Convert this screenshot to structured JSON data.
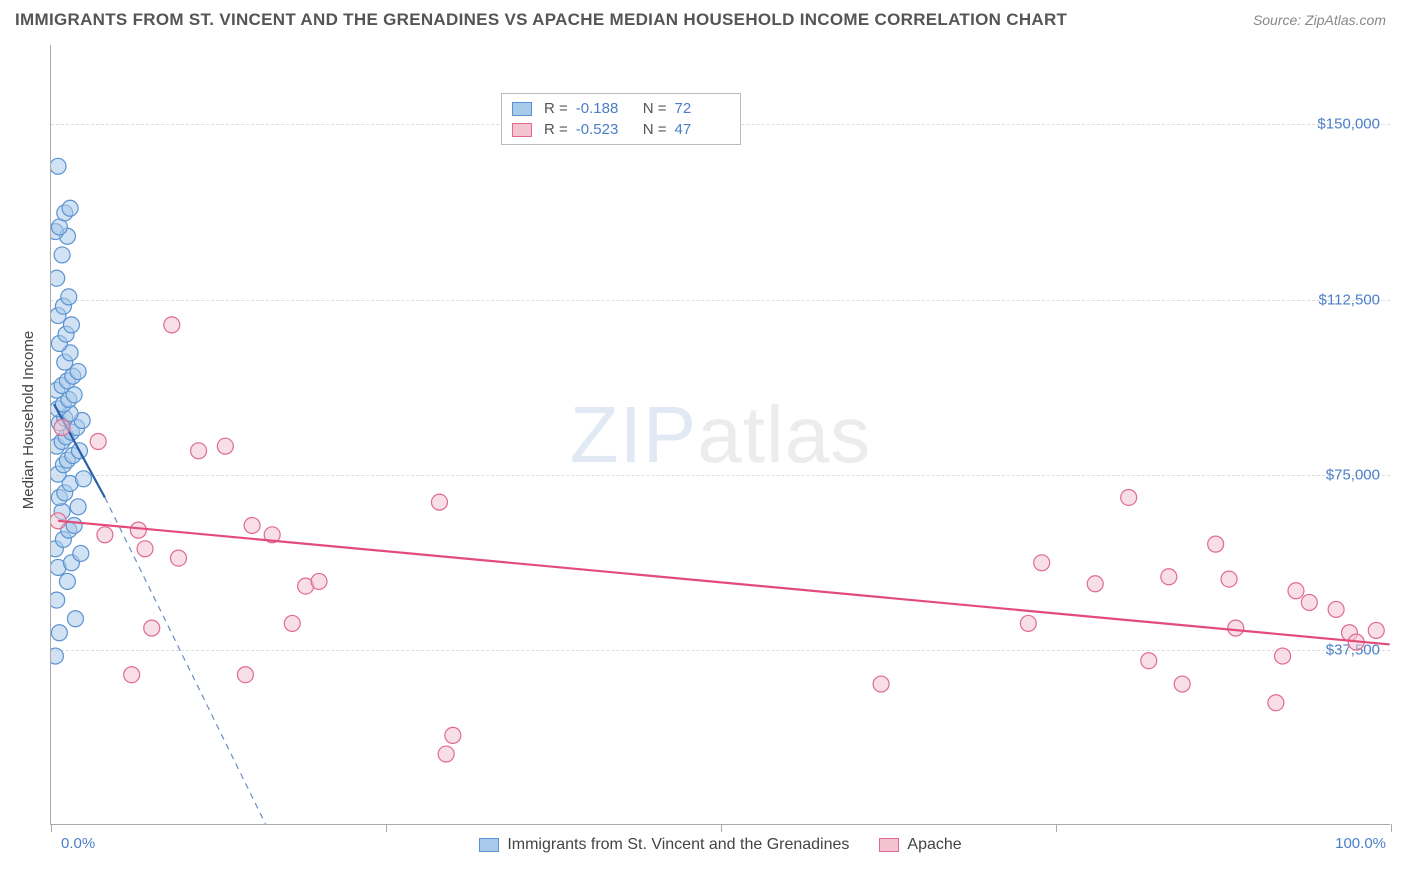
{
  "title": "IMMIGRANTS FROM ST. VINCENT AND THE GRENADINES VS APACHE MEDIAN HOUSEHOLD INCOME CORRELATION CHART",
  "source": "Source: ZipAtlas.com",
  "watermark_a": "ZIP",
  "watermark_b": "atlas",
  "ylabel": "Median Household Income",
  "chart": {
    "type": "scatter",
    "xlim": [
      0.0,
      100.0
    ],
    "ylim": [
      0,
      167000
    ],
    "ytick_values": [
      37500,
      75000,
      112500,
      150000
    ],
    "ytick_labels": [
      "$37,500",
      "$75,000",
      "$112,500",
      "$150,000"
    ],
    "xtick_values": [
      0,
      25,
      50,
      75,
      100
    ],
    "xtick_label_left": "0.0%",
    "xtick_label_right": "100.0%",
    "grid_color": "#dddddd",
    "axis_color": "#aaaaaa",
    "marker_radius": 8,
    "marker_opacity": 0.55,
    "line_width": 2.2,
    "series": [
      {
        "name": "Immigrants from St. Vincent and the Grenadines",
        "fill": "#a9cbeb",
        "stroke": "#5b93d1",
        "line_color": "#2a5fa8",
        "r_value": "-0.188",
        "n_value": "72",
        "trend": {
          "x1": 0.2,
          "y1": 90000,
          "x2": 4.0,
          "y2": 70000,
          "dash_extend_x": 16,
          "dash_extend_y": 0
        },
        "points": [
          [
            0.3,
            36000
          ],
          [
            0.6,
            41000
          ],
          [
            1.8,
            44000
          ],
          [
            0.4,
            48000
          ],
          [
            1.2,
            52000
          ],
          [
            0.5,
            55000
          ],
          [
            1.5,
            56000
          ],
          [
            2.2,
            58000
          ],
          [
            0.3,
            59000
          ],
          [
            0.9,
            61000
          ],
          [
            1.3,
            63000
          ],
          [
            1.7,
            64000
          ],
          [
            0.8,
            67000
          ],
          [
            2.0,
            68000
          ],
          [
            0.6,
            70000
          ],
          [
            1.0,
            71000
          ],
          [
            1.4,
            73000
          ],
          [
            2.4,
            74000
          ],
          [
            0.5,
            75000
          ],
          [
            0.9,
            77000
          ],
          [
            1.2,
            78000
          ],
          [
            1.6,
            79000
          ],
          [
            2.1,
            80000
          ],
          [
            0.4,
            81000
          ],
          [
            0.8,
            82000
          ],
          [
            1.1,
            83000
          ],
          [
            1.5,
            84000
          ],
          [
            1.9,
            85000
          ],
          [
            0.6,
            86000
          ],
          [
            2.3,
            86500
          ],
          [
            1.0,
            87000
          ],
          [
            1.4,
            88000
          ],
          [
            0.5,
            89000
          ],
          [
            0.9,
            90000
          ],
          [
            1.3,
            91000
          ],
          [
            1.7,
            92000
          ],
          [
            0.4,
            93000
          ],
          [
            0.8,
            94000
          ],
          [
            1.2,
            95000
          ],
          [
            1.6,
            96000
          ],
          [
            2.0,
            97000
          ],
          [
            1.0,
            99000
          ],
          [
            1.4,
            101000
          ],
          [
            0.6,
            103000
          ],
          [
            1.1,
            105000
          ],
          [
            1.5,
            107000
          ],
          [
            0.5,
            109000
          ],
          [
            0.9,
            111000
          ],
          [
            1.3,
            113000
          ],
          [
            0.4,
            117000
          ],
          [
            0.8,
            122000
          ],
          [
            1.2,
            126000
          ],
          [
            0.3,
            127000
          ],
          [
            0.6,
            128000
          ],
          [
            1.0,
            131000
          ],
          [
            1.4,
            132000
          ],
          [
            0.5,
            141000
          ]
        ]
      },
      {
        "name": "Apache",
        "fill": "#f3c3d1",
        "stroke": "#e06b8e",
        "line_color": "#e34b7b",
        "r_value": "-0.523",
        "n_value": "47",
        "trend": {
          "x1": 0.5,
          "y1": 65000,
          "x2": 100,
          "y2": 38500
        },
        "points": [
          [
            3.5,
            82000
          ],
          [
            0.8,
            85000
          ],
          [
            9.0,
            107000
          ],
          [
            0.5,
            65000
          ],
          [
            4.0,
            62000
          ],
          [
            6.5,
            63000
          ],
          [
            11.0,
            80000
          ],
          [
            13.0,
            81000
          ],
          [
            7.0,
            59000
          ],
          [
            9.5,
            57000
          ],
          [
            15.0,
            64000
          ],
          [
            16.5,
            62000
          ],
          [
            19.0,
            51000
          ],
          [
            20.0,
            52000
          ],
          [
            29.0,
            69000
          ],
          [
            6.0,
            32000
          ],
          [
            14.5,
            32000
          ],
          [
            7.5,
            42000
          ],
          [
            18.0,
            43000
          ],
          [
            30.0,
            19000
          ],
          [
            29.5,
            15000
          ],
          [
            62.0,
            30000
          ],
          [
            78.0,
            51500
          ],
          [
            80.5,
            70000
          ],
          [
            74.0,
            56000
          ],
          [
            82.0,
            35000
          ],
          [
            83.5,
            53000
          ],
          [
            84.5,
            30000
          ],
          [
            88.0,
            52500
          ],
          [
            88.5,
            42000
          ],
          [
            91.5,
            26000
          ],
          [
            92.0,
            36000
          ],
          [
            93.0,
            50000
          ],
          [
            94.0,
            47500
          ],
          [
            96.0,
            46000
          ],
          [
            97.0,
            41000
          ],
          [
            97.5,
            39000
          ],
          [
            99.0,
            41500
          ],
          [
            87.0,
            60000
          ],
          [
            73.0,
            43000
          ]
        ]
      }
    ],
    "legend_bottom": [
      {
        "label": "Immigrants from St. Vincent and the Grenadines",
        "fill": "#a9cbeb",
        "stroke": "#5b93d1"
      },
      {
        "label": "Apache",
        "fill": "#f3c3d1",
        "stroke": "#e06b8e"
      }
    ]
  }
}
